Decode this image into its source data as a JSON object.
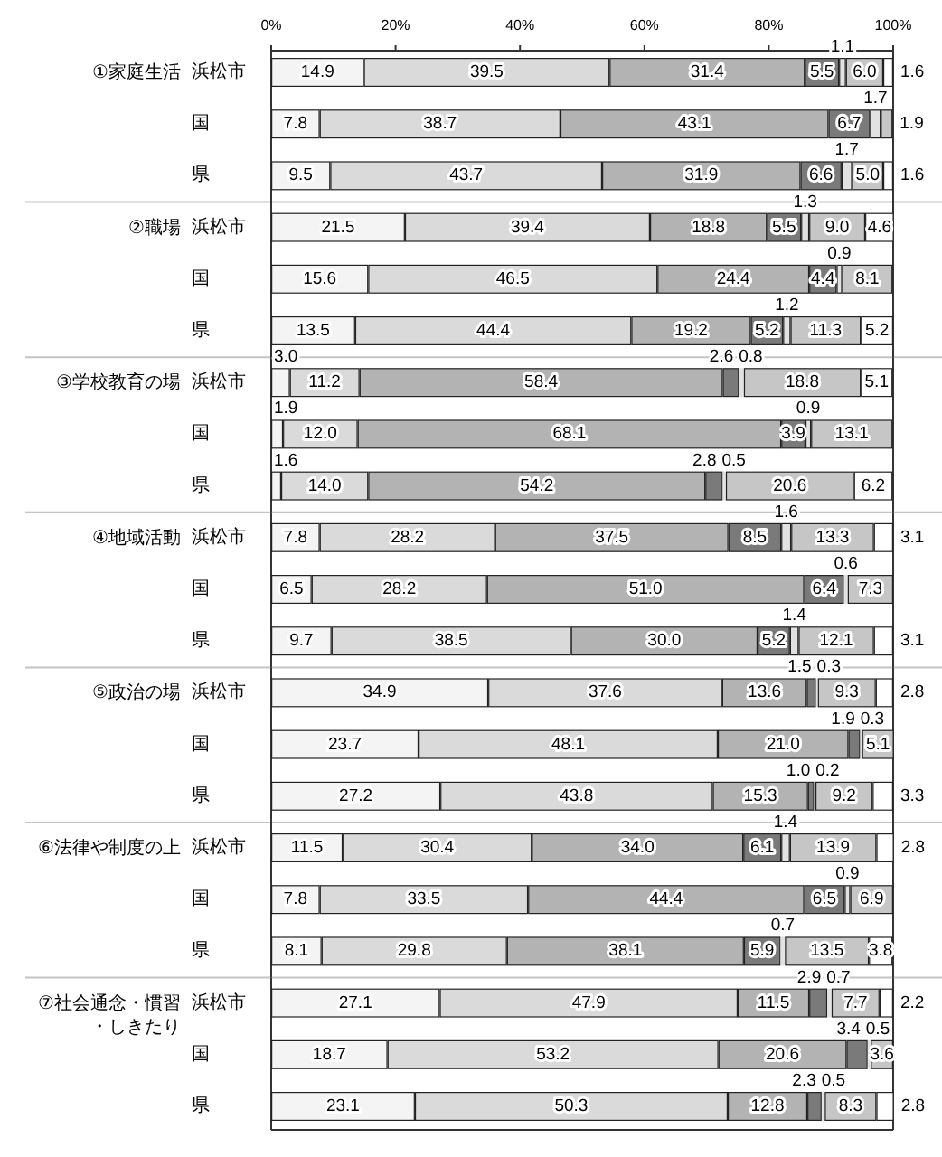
{
  "chart_data": [
    {
      "type": "bar",
      "orientation": "horizontal",
      "stacked": true,
      "title": "①家庭生活",
      "categories": [
        "浜松市",
        "国",
        "県"
      ],
      "xlim": [
        0,
        100
      ],
      "xticks": [
        {
          "value": 0,
          "label": "0%"
        },
        {
          "value": 20,
          "label": "20%"
        },
        {
          "value": 40,
          "label": "40%"
        },
        {
          "value": 60,
          "label": "60%"
        },
        {
          "value": 80,
          "label": "80%"
        },
        {
          "value": 100,
          "label": "100%"
        }
      ],
      "series": [
        {
          "color": "#f4f4f4",
          "values": [
            14.9,
            7.8,
            9.5
          ],
          "value_labels": [
            "14.9",
            "7.8",
            "9.5"
          ]
        },
        {
          "color": "#dadada",
          "values": [
            39.5,
            38.7,
            43.7
          ],
          "value_labels": [
            "39.5",
            "38.7",
            "43.7"
          ]
        },
        {
          "color": "#b3b3b3",
          "values": [
            31.4,
            43.1,
            31.9
          ],
          "value_labels": [
            "31.4",
            "43.1",
            "31.9"
          ]
        },
        {
          "color": "#7a7a7a",
          "values": [
            5.5,
            6.7,
            6.6
          ],
          "value_labels": [
            "5.5",
            "6.7",
            "6.6"
          ]
        },
        {
          "color": "#e2e2e2",
          "values": [
            1.1,
            1.7,
            1.7
          ],
          "value_labels": [
            "1.1",
            "1.7",
            "1.7"
          ]
        },
        {
          "color": "#c6c6c6",
          "values": [
            6.0,
            1.9,
            5.0
          ],
          "value_labels": [
            "6.0",
            "1.9",
            "5.0"
          ]
        },
        {
          "color": "#ffffff",
          "values": [
            1.6,
            null,
            1.6
          ],
          "value_labels": [
            "1.6",
            null,
            "1.6"
          ]
        }
      ]
    },
    {
      "type": "bar",
      "orientation": "horizontal",
      "stacked": true,
      "title": "②職場",
      "categories": [
        "浜松市",
        "国",
        "県"
      ],
      "xlim": [
        0,
        100
      ],
      "tick_labels": "y",
      "series": [
        {
          "color": "#f4f4f4",
          "values": [
            21.5,
            15.6,
            13.5
          ],
          "value_labels": [
            "21.5",
            "15.6",
            "13.5"
          ]
        },
        {
          "color": "#dadada",
          "values": [
            39.4,
            46.5,
            44.4
          ],
          "value_labels": [
            "39.4",
            "46.5",
            "44.4"
          ]
        },
        {
          "color": "#b3b3b3",
          "values": [
            18.8,
            24.4,
            19.2
          ],
          "value_labels": [
            "18.8",
            "24.4",
            "19.2"
          ]
        },
        {
          "color": "#7a7a7a",
          "values": [
            5.5,
            4.4,
            5.2
          ],
          "value_labels": [
            "5.5",
            "4.4",
            "5.2"
          ]
        },
        {
          "color": "#e2e2e2",
          "values": [
            1.3,
            0.9,
            1.2
          ],
          "value_labels": [
            "1.3",
            "0.9",
            "1.2"
          ]
        },
        {
          "color": "#c6c6c6",
          "values": [
            9.0,
            8.1,
            11.3
          ],
          "value_labels": [
            "9.0",
            "8.1",
            "11.3"
          ]
        },
        {
          "color": "#ffffff",
          "values": [
            4.6,
            null,
            5.2
          ],
          "value_labels": [
            "4.6",
            null,
            "5.2"
          ]
        }
      ]
    },
    {
      "type": "bar",
      "orientation": "horizontal",
      "stacked": true,
      "title": "③学校教育の場",
      "categories": [
        "浜松市",
        "国",
        "県"
      ],
      "xlim": [
        0,
        100
      ],
      "tick_labels": "y",
      "series": [
        {
          "color": "#f4f4f4",
          "values": [
            3.0,
            1.9,
            1.6
          ],
          "value_labels": [
            "3.0",
            "1.9",
            "1.6"
          ]
        },
        {
          "color": "#dadada",
          "values": [
            11.2,
            12.0,
            14.0
          ],
          "value_labels": [
            "11.2",
            "12.0",
            "14.0"
          ]
        },
        {
          "color": "#b3b3b3",
          "values": [
            58.4,
            68.1,
            54.2
          ],
          "value_labels": [
            "58.4",
            "68.1",
            "54.2"
          ]
        },
        {
          "color": "#7a7a7a",
          "values": [
            2.6,
            3.9,
            2.8
          ],
          "value_labels": [
            "2.6",
            "3.9",
            "2.8"
          ]
        },
        {
          "color": "#e2e2e2",
          "values": [
            0.8,
            0.9,
            0.5
          ],
          "value_labels": [
            "0.8",
            "0.9",
            "0.5"
          ]
        },
        {
          "color": "#c6c6c6",
          "values": [
            18.8,
            13.1,
            20.6
          ],
          "value_labels": [
            "18.8",
            "13.1",
            "20.6"
          ]
        },
        {
          "color": "#ffffff",
          "values": [
            5.1,
            null,
            6.2
          ],
          "value_labels": [
            "5.1",
            null,
            "6.2"
          ]
        }
      ]
    },
    {
      "type": "bar",
      "orientation": "horizontal",
      "stacked": true,
      "title": "④地域活動",
      "categories": [
        "浜松市",
        "国",
        "県"
      ],
      "xlim": [
        0,
        100
      ],
      "tick_labels": "y",
      "series": [
        {
          "color": "#f4f4f4",
          "values": [
            7.8,
            6.5,
            9.7
          ],
          "value_labels": [
            "7.8",
            "6.5",
            "9.7"
          ]
        },
        {
          "color": "#dadada",
          "values": [
            28.2,
            28.2,
            38.5
          ],
          "value_labels": [
            "28.2",
            "28.2",
            "38.5"
          ]
        },
        {
          "color": "#b3b3b3",
          "values": [
            37.5,
            51.0,
            30.0
          ],
          "value_labels": [
            "37.5",
            "51.0",
            "30.0"
          ]
        },
        {
          "color": "#7a7a7a",
          "values": [
            8.5,
            6.4,
            5.2
          ],
          "value_labels": [
            "8.5",
            "6.4",
            "5.2"
          ]
        },
        {
          "color": "#e2e2e2",
          "values": [
            1.6,
            0.6,
            1.4
          ],
          "value_labels": [
            "1.6",
            "0.6",
            "1.4"
          ]
        },
        {
          "color": "#c6c6c6",
          "values": [
            13.3,
            7.3,
            12.1
          ],
          "value_labels": [
            "13.3",
            "7.3",
            "12.1"
          ]
        },
        {
          "color": "#ffffff",
          "values": [
            3.1,
            null,
            3.1
          ],
          "value_labels": [
            "3.1",
            null,
            "3.1"
          ]
        }
      ]
    },
    {
      "type": "bar",
      "orientation": "horizontal",
      "stacked": true,
      "title": "⑤政治の場",
      "categories": [
        "浜松市",
        "国",
        "県"
      ],
      "xlim": [
        0,
        100
      ],
      "tick_labels": "y",
      "series": [
        {
          "color": "#f4f4f4",
          "values": [
            34.9,
            23.7,
            27.2
          ],
          "value_labels": [
            "34.9",
            "23.7",
            "27.2"
          ]
        },
        {
          "color": "#dadada",
          "values": [
            37.6,
            48.1,
            43.8
          ],
          "value_labels": [
            "37.6",
            "48.1",
            "43.8"
          ]
        },
        {
          "color": "#b3b3b3",
          "values": [
            13.6,
            21.0,
            15.3
          ],
          "value_labels": [
            "13.6",
            "21.0",
            "15.3"
          ]
        },
        {
          "color": "#7a7a7a",
          "values": [
            1.5,
            1.9,
            1.0
          ],
          "value_labels": [
            "1.5",
            "1.9",
            "1.0"
          ]
        },
        {
          "color": "#e2e2e2",
          "values": [
            0.3,
            0.3,
            0.2
          ],
          "value_labels": [
            "0.3",
            "0.3",
            "0.2"
          ]
        },
        {
          "color": "#c6c6c6",
          "values": [
            9.3,
            5.1,
            9.2
          ],
          "value_labels": [
            "9.3",
            "5.1",
            "9.2"
          ]
        },
        {
          "color": "#ffffff",
          "values": [
            2.8,
            null,
            3.3
          ],
          "value_labels": [
            "2.8",
            null,
            "3.3"
          ]
        }
      ]
    },
    {
      "type": "bar",
      "orientation": "horizontal",
      "stacked": true,
      "title": "⑥法律や制度の上",
      "categories": [
        "浜松市",
        "国",
        "県"
      ],
      "xlim": [
        0,
        100
      ],
      "tick_labels": "y",
      "series": [
        {
          "color": "#f4f4f4",
          "values": [
            11.5,
            7.8,
            8.1
          ],
          "value_labels": [
            "11.5",
            "7.8",
            "8.1"
          ]
        },
        {
          "color": "#dadada",
          "values": [
            30.4,
            33.5,
            29.8
          ],
          "value_labels": [
            "30.4",
            "33.5",
            "29.8"
          ]
        },
        {
          "color": "#b3b3b3",
          "values": [
            34.0,
            44.4,
            38.1
          ],
          "value_labels": [
            "34.0",
            "44.4",
            "38.1"
          ]
        },
        {
          "color": "#7a7a7a",
          "values": [
            6.1,
            6.5,
            5.9
          ],
          "value_labels": [
            "6.1",
            "6.5",
            "5.9"
          ]
        },
        {
          "color": "#e2e2e2",
          "values": [
            1.4,
            0.9,
            0.7
          ],
          "value_labels": [
            "1.4",
            "0.9",
            "0.7"
          ]
        },
        {
          "color": "#c6c6c6",
          "values": [
            13.9,
            6.9,
            13.5
          ],
          "value_labels": [
            "13.9",
            "6.9",
            "13.5"
          ]
        },
        {
          "color": "#ffffff",
          "values": [
            2.8,
            null,
            3.8
          ],
          "value_labels": [
            "2.8",
            null,
            "3.8"
          ]
        }
      ]
    },
    {
      "type": "bar",
      "orientation": "horizontal",
      "stacked": true,
      "title": "⑦社会通念・慣習・しきたり",
      "categories": [
        "浜松市",
        "国",
        "県"
      ],
      "xlim": [
        0,
        100
      ],
      "tick_labels": "y",
      "series": [
        {
          "color": "#f4f4f4",
          "values": [
            27.1,
            18.7,
            23.1
          ],
          "value_labels": [
            "27.1",
            "18.7",
            "23.1"
          ]
        },
        {
          "color": "#dadada",
          "values": [
            47.9,
            53.2,
            50.3
          ],
          "value_labels": [
            "47.9",
            "53.2",
            "50.3"
          ]
        },
        {
          "color": "#b3b3b3",
          "values": [
            11.5,
            20.6,
            12.8
          ],
          "value_labels": [
            "11.5",
            "20.6",
            "12.8"
          ]
        },
        {
          "color": "#7a7a7a",
          "values": [
            2.9,
            3.4,
            2.3
          ],
          "value_labels": [
            "2.9",
            "3.4",
            "2.3"
          ]
        },
        {
          "color": "#e2e2e2",
          "values": [
            0.7,
            0.5,
            0.5
          ],
          "value_labels": [
            "0.7",
            "0.5",
            "0.5"
          ]
        },
        {
          "color": "#c6c6c6",
          "values": [
            7.7,
            3.6,
            8.3
          ],
          "value_labels": [
            "7.7",
            "3.6",
            "8.3"
          ]
        },
        {
          "color": "#ffffff",
          "values": [
            2.2,
            null,
            2.8
          ],
          "value_labels": [
            "2.2",
            null,
            "2.8"
          ]
        }
      ]
    }
  ]
}
